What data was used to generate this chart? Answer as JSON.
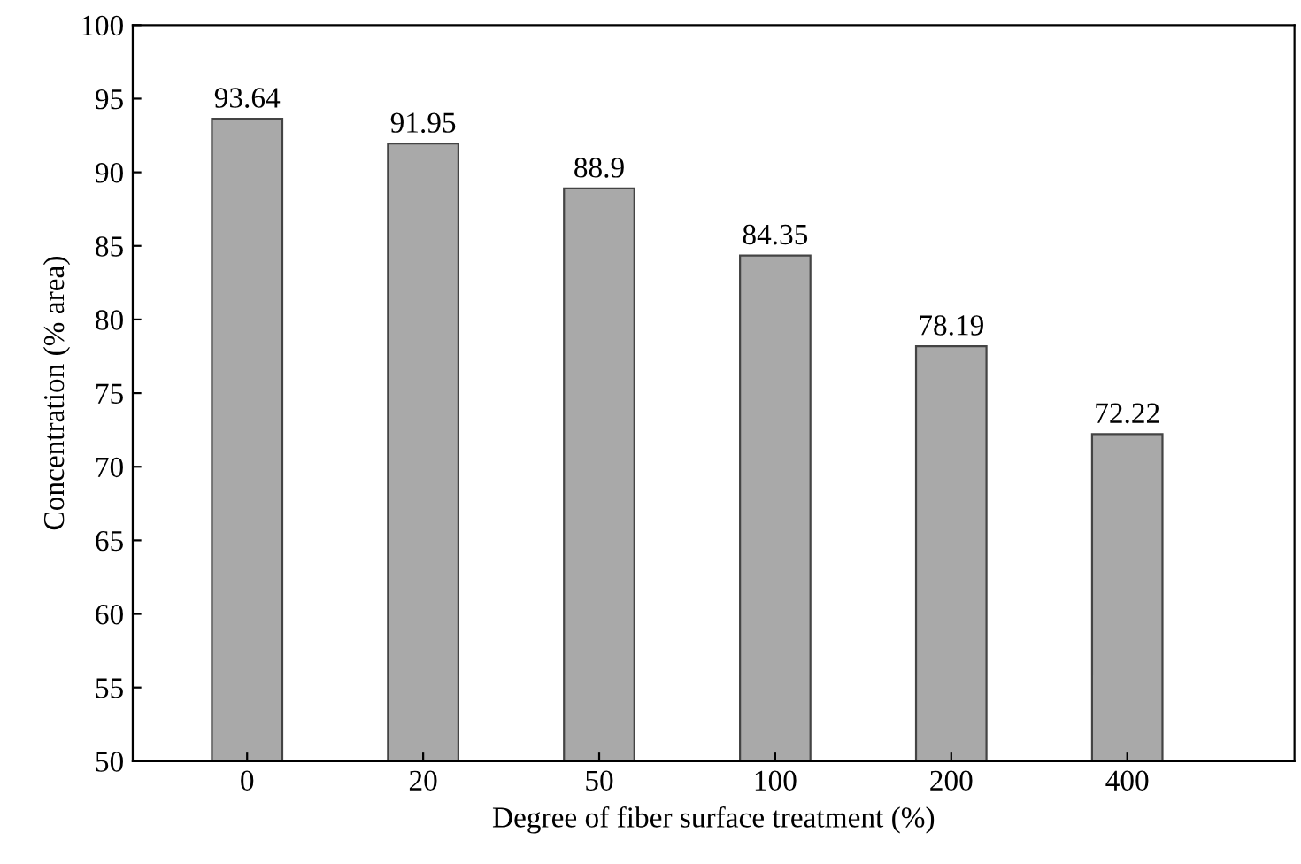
{
  "chart_data": {
    "type": "bar",
    "xlabel": "Degree of fiber surface treatment (%)",
    "ylabel": "Concentration (% area)",
    "categories": [
      "0",
      "20",
      "50",
      "100",
      "200",
      "400"
    ],
    "values": [
      93.64,
      91.95,
      88.9,
      84.35,
      78.19,
      72.22
    ],
    "color": "#a9a9a9",
    "ylim": [
      50,
      100
    ],
    "yticks": [
      50,
      55,
      60,
      65,
      70,
      75,
      80,
      85,
      90,
      95,
      100
    ],
    "data_labels": true,
    "grid": false,
    "legend": false
  }
}
